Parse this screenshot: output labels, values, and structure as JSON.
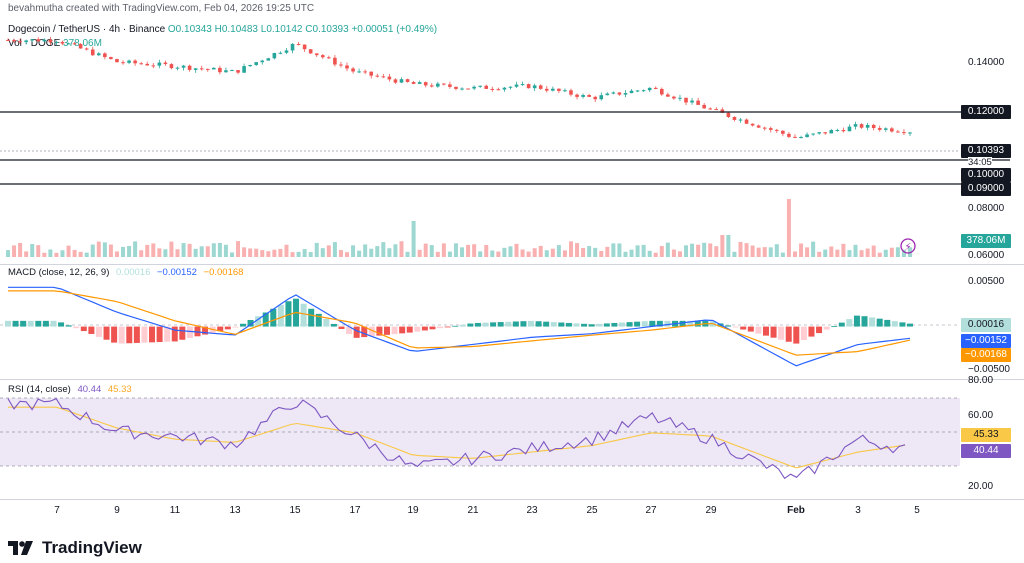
{
  "header": {
    "creator": "bevahmutha created with TradingView.com, Feb 04, 2026 19:25 UTC",
    "symbol": "Dogecoin / TetherUS · 4h · Binance",
    "open": "O0.10343",
    "high": "H0.10483",
    "low": "L0.10142",
    "close": "C0.10393",
    "change": "+0.00051 (+0.49%)",
    "vol_label": "Vol · DOGE",
    "vol_value": "378.06M"
  },
  "price_axis": {
    "ticks": [
      "0.14000",
      "0.12000",
      "0.10000",
      "0.09000",
      "0.08000",
      "0.06000"
    ],
    "current_price": "0.10393",
    "countdown": "34:05",
    "level_120": "0.12000",
    "level_100": "0.10000",
    "level_090": "0.09000",
    "volume_tag": "378.06M"
  },
  "macd": {
    "title": "MACD (close, 12, 26, 9)",
    "hist": "0.00016",
    "macd": "−0.00152",
    "signal": "−0.00168",
    "ticks": [
      "0.00500",
      "−0.00500"
    ],
    "tag_hist": "0.00016",
    "tag_macd": "−0.00152",
    "tag_signal": "−0.00168"
  },
  "rsi": {
    "title": "RSI (14, close)",
    "rsi": "40.44",
    "ma": "45.33",
    "ticks": [
      "80.00",
      "60.00",
      "20.00"
    ],
    "tag_ma": "45.33",
    "tag_rsi": "40.44"
  },
  "x_axis": [
    "7",
    "9",
    "11",
    "13",
    "15",
    "17",
    "19",
    "21",
    "23",
    "25",
    "27",
    "29",
    "Feb",
    "3",
    "5"
  ],
  "footer": {
    "brand": "TradingView"
  },
  "colors": {
    "up": "#26a69a",
    "down": "#ef5350",
    "macd_line": "#2962ff",
    "signal_line": "#ff9800",
    "rsi_line": "#7e57c2",
    "rsi_ma": "#f9c846",
    "rsi_band": "#ede7f6"
  },
  "chart_data": [
    {
      "type": "line",
      "title": "Dogecoin / TetherUS · 4h · Binance",
      "x": [
        "7",
        "9",
        "11",
        "13",
        "15",
        "17",
        "19",
        "21",
        "23",
        "25",
        "27",
        "29",
        "Feb",
        "3",
        "5"
      ],
      "series": [
        {
          "name": "Dogecoin / TetherUS",
          "values": [
            0.15,
            0.139,
            0.137,
            0.134,
            0.148,
            0.134,
            0.128,
            0.126,
            0.127,
            0.121,
            0.126,
            0.115,
            0.101,
            0.107,
            0.104
          ]
        }
      ],
      "horizontal_levels": [
        0.12,
        0.1,
        0.09
      ],
      "ylim": [
        0.06,
        0.155
      ]
    },
    {
      "type": "line",
      "title": "MACD (close, 12, 26, 9)",
      "series": [
        {
          "name": "MACD",
          "values": [
            0.0055,
            0.002,
            -0.0005,
            -0.0012,
            0.0045,
            -0.0005,
            -0.0035,
            -0.0025,
            -0.0015,
            -0.001,
            0.0,
            0.001,
            -0.0055,
            -0.0025,
            -0.00152
          ]
        },
        {
          "name": "Signal",
          "values": [
            0.005,
            0.0035,
            0.0008,
            -0.0011,
            0.002,
            0.0005,
            -0.003,
            -0.0028,
            -0.002,
            -0.0012,
            -0.0005,
            0.0005,
            -0.004,
            -0.0035,
            -0.00168
          ]
        }
      ],
      "ylim": [
        -0.0065,
        0.0075
      ]
    },
    {
      "type": "line",
      "title": "RSI (14, close)",
      "series": [
        {
          "name": "RSI",
          "values": [
            70,
            53,
            50,
            45,
            72,
            50,
            30,
            36,
            42,
            48,
            62,
            48,
            22,
            48,
            40.44
          ]
        },
        {
          "name": "RSI-based MA",
          "values": [
            68,
            55,
            48,
            46,
            58,
            52,
            38,
            36,
            40,
            44,
            52,
            50,
            30,
            40,
            45.33
          ]
        }
      ],
      "bands": [
        70,
        30
      ],
      "ylim": [
        10,
        85
      ]
    }
  ]
}
